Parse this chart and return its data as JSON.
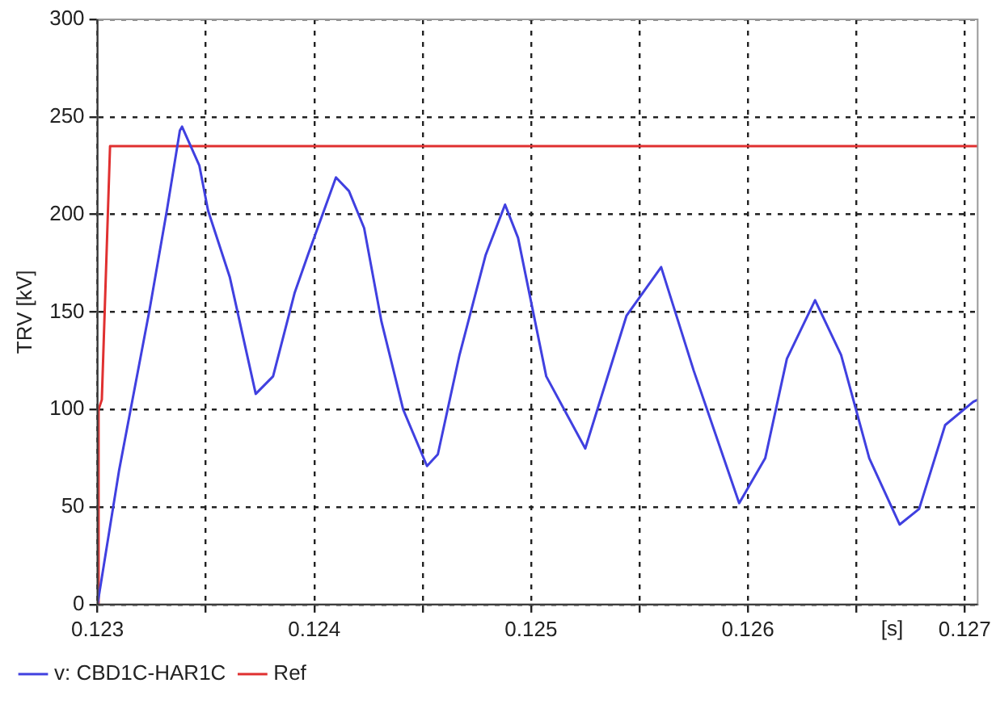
{
  "chart_data": {
    "type": "line",
    "xlabel": "[s]",
    "ylabel": "TRV [kV]",
    "xlim": [
      0.123,
      0.12706
    ],
    "ylim": [
      0,
      300
    ],
    "xticks": [
      0.123,
      {
        "value": 0.1235,
        "label": null
      },
      0.124,
      {
        "value": 0.1245,
        "label": null
      },
      0.125,
      {
        "value": 0.1255,
        "label": null
      },
      0.126,
      {
        "value": 0.1265,
        "label": null
      },
      0.127
    ],
    "yticks": [
      0,
      50,
      100,
      150,
      200,
      250,
      300
    ],
    "grid": true,
    "legend": "bottom left",
    "marker": "none",
    "line_style": "solid",
    "series": [
      {
        "name": "v: CBD1C-HAR1C",
        "color": "#4040e0",
        "x": [
          0.123,
          0.1231,
          0.12324,
          0.12332,
          0.12338,
          0.12339,
          0.12347,
          0.12351,
          0.12361,
          0.12373,
          0.12381,
          0.12391,
          0.12397,
          0.1241,
          0.12416,
          0.12423,
          0.12431,
          0.12441,
          0.12452,
          0.12457,
          0.12467,
          0.12479,
          0.12488,
          0.12494,
          0.12507,
          0.12525,
          0.12544,
          0.1256,
          0.12575,
          0.12596,
          0.12608,
          0.12618,
          0.12631,
          0.12643,
          0.12656,
          0.1267,
          0.12679,
          0.12691,
          0.12704,
          0.12706
        ],
        "values": [
          0,
          69,
          151,
          202,
          243,
          245,
          225,
          202,
          168,
          108,
          117,
          160,
          179,
          219,
          212,
          193,
          145,
          100,
          71,
          77,
          128,
          179,
          205,
          188,
          117,
          80,
          148,
          173,
          120,
          52,
          75,
          126,
          156,
          128,
          75,
          41,
          49,
          92,
          104,
          105
        ]
      },
      {
        "name": "Ref",
        "color": "#e03030",
        "x": [
          0.123,
          0.123005,
          0.12302,
          0.123058,
          0.12706
        ],
        "values": [
          0,
          100,
          105,
          235,
          235
        ]
      }
    ]
  }
}
